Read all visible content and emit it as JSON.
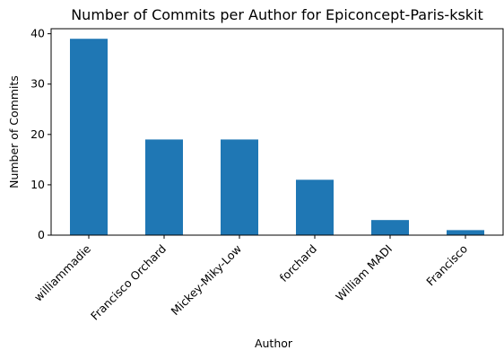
{
  "chart_data": {
    "type": "bar",
    "title": "Number of Commits per Author for Epiconcept-Paris-kskit",
    "xlabel": "Author",
    "ylabel": "Number of Commits",
    "categories": [
      "williammadie",
      "Francisco Orchard",
      "Mickey-Miky-Low",
      "forchard",
      "William MADI",
      "Francisco"
    ],
    "values": [
      39,
      19,
      19,
      11,
      3,
      1
    ],
    "ylim": [
      0,
      41
    ],
    "yticks": [
      0,
      10,
      20,
      30,
      40
    ],
    "grid": false,
    "bar_color": "#1f77b4"
  }
}
